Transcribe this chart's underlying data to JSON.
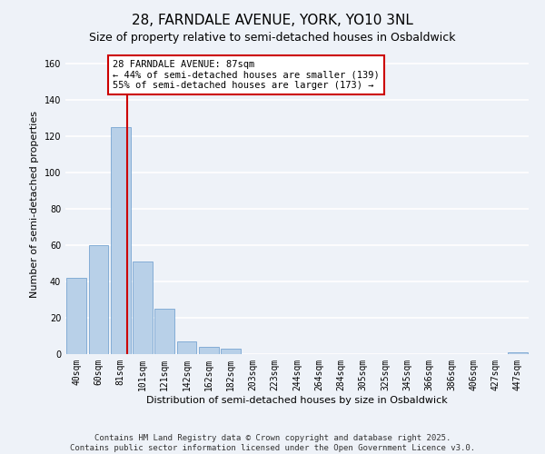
{
  "title": "28, FARNDALE AVENUE, YORK, YO10 3NL",
  "subtitle": "Size of property relative to semi-detached houses in Osbaldwick",
  "xlabel": "Distribution of semi-detached houses by size in Osbaldwick",
  "ylabel": "Number of semi-detached properties",
  "bin_labels": [
    "40sqm",
    "60sqm",
    "81sqm",
    "101sqm",
    "121sqm",
    "142sqm",
    "162sqm",
    "182sqm",
    "203sqm",
    "223sqm",
    "244sqm",
    "264sqm",
    "284sqm",
    "305sqm",
    "325sqm",
    "345sqm",
    "366sqm",
    "386sqm",
    "406sqm",
    "427sqm",
    "447sqm"
  ],
  "bar_heights": [
    42,
    60,
    125,
    51,
    25,
    7,
    4,
    3,
    0,
    0,
    0,
    0,
    0,
    0,
    0,
    0,
    0,
    0,
    0,
    0,
    1
  ],
  "bar_color": "#b8d0e8",
  "bar_edgecolor": "#6699cc",
  "address_label": "28 FARNDALE AVENUE: 87sqm",
  "annotation_line1": "← 44% of semi-detached houses are smaller (139)",
  "annotation_line2": "55% of semi-detached houses are larger (173) →",
  "vline_color": "#cc0000",
  "annotation_box_edgecolor": "#cc0000",
  "annotation_box_facecolor": "#ffffff",
  "ylim": [
    0,
    165
  ],
  "footer_line1": "Contains HM Land Registry data © Crown copyright and database right 2025.",
  "footer_line2": "Contains public sector information licensed under the Open Government Licence v3.0.",
  "bg_color": "#eef2f8",
  "grid_color": "#ffffff",
  "title_fontsize": 11,
  "subtitle_fontsize": 9,
  "axis_label_fontsize": 8,
  "tick_fontsize": 7,
  "annotation_fontsize": 7.5,
  "footer_fontsize": 6.5
}
